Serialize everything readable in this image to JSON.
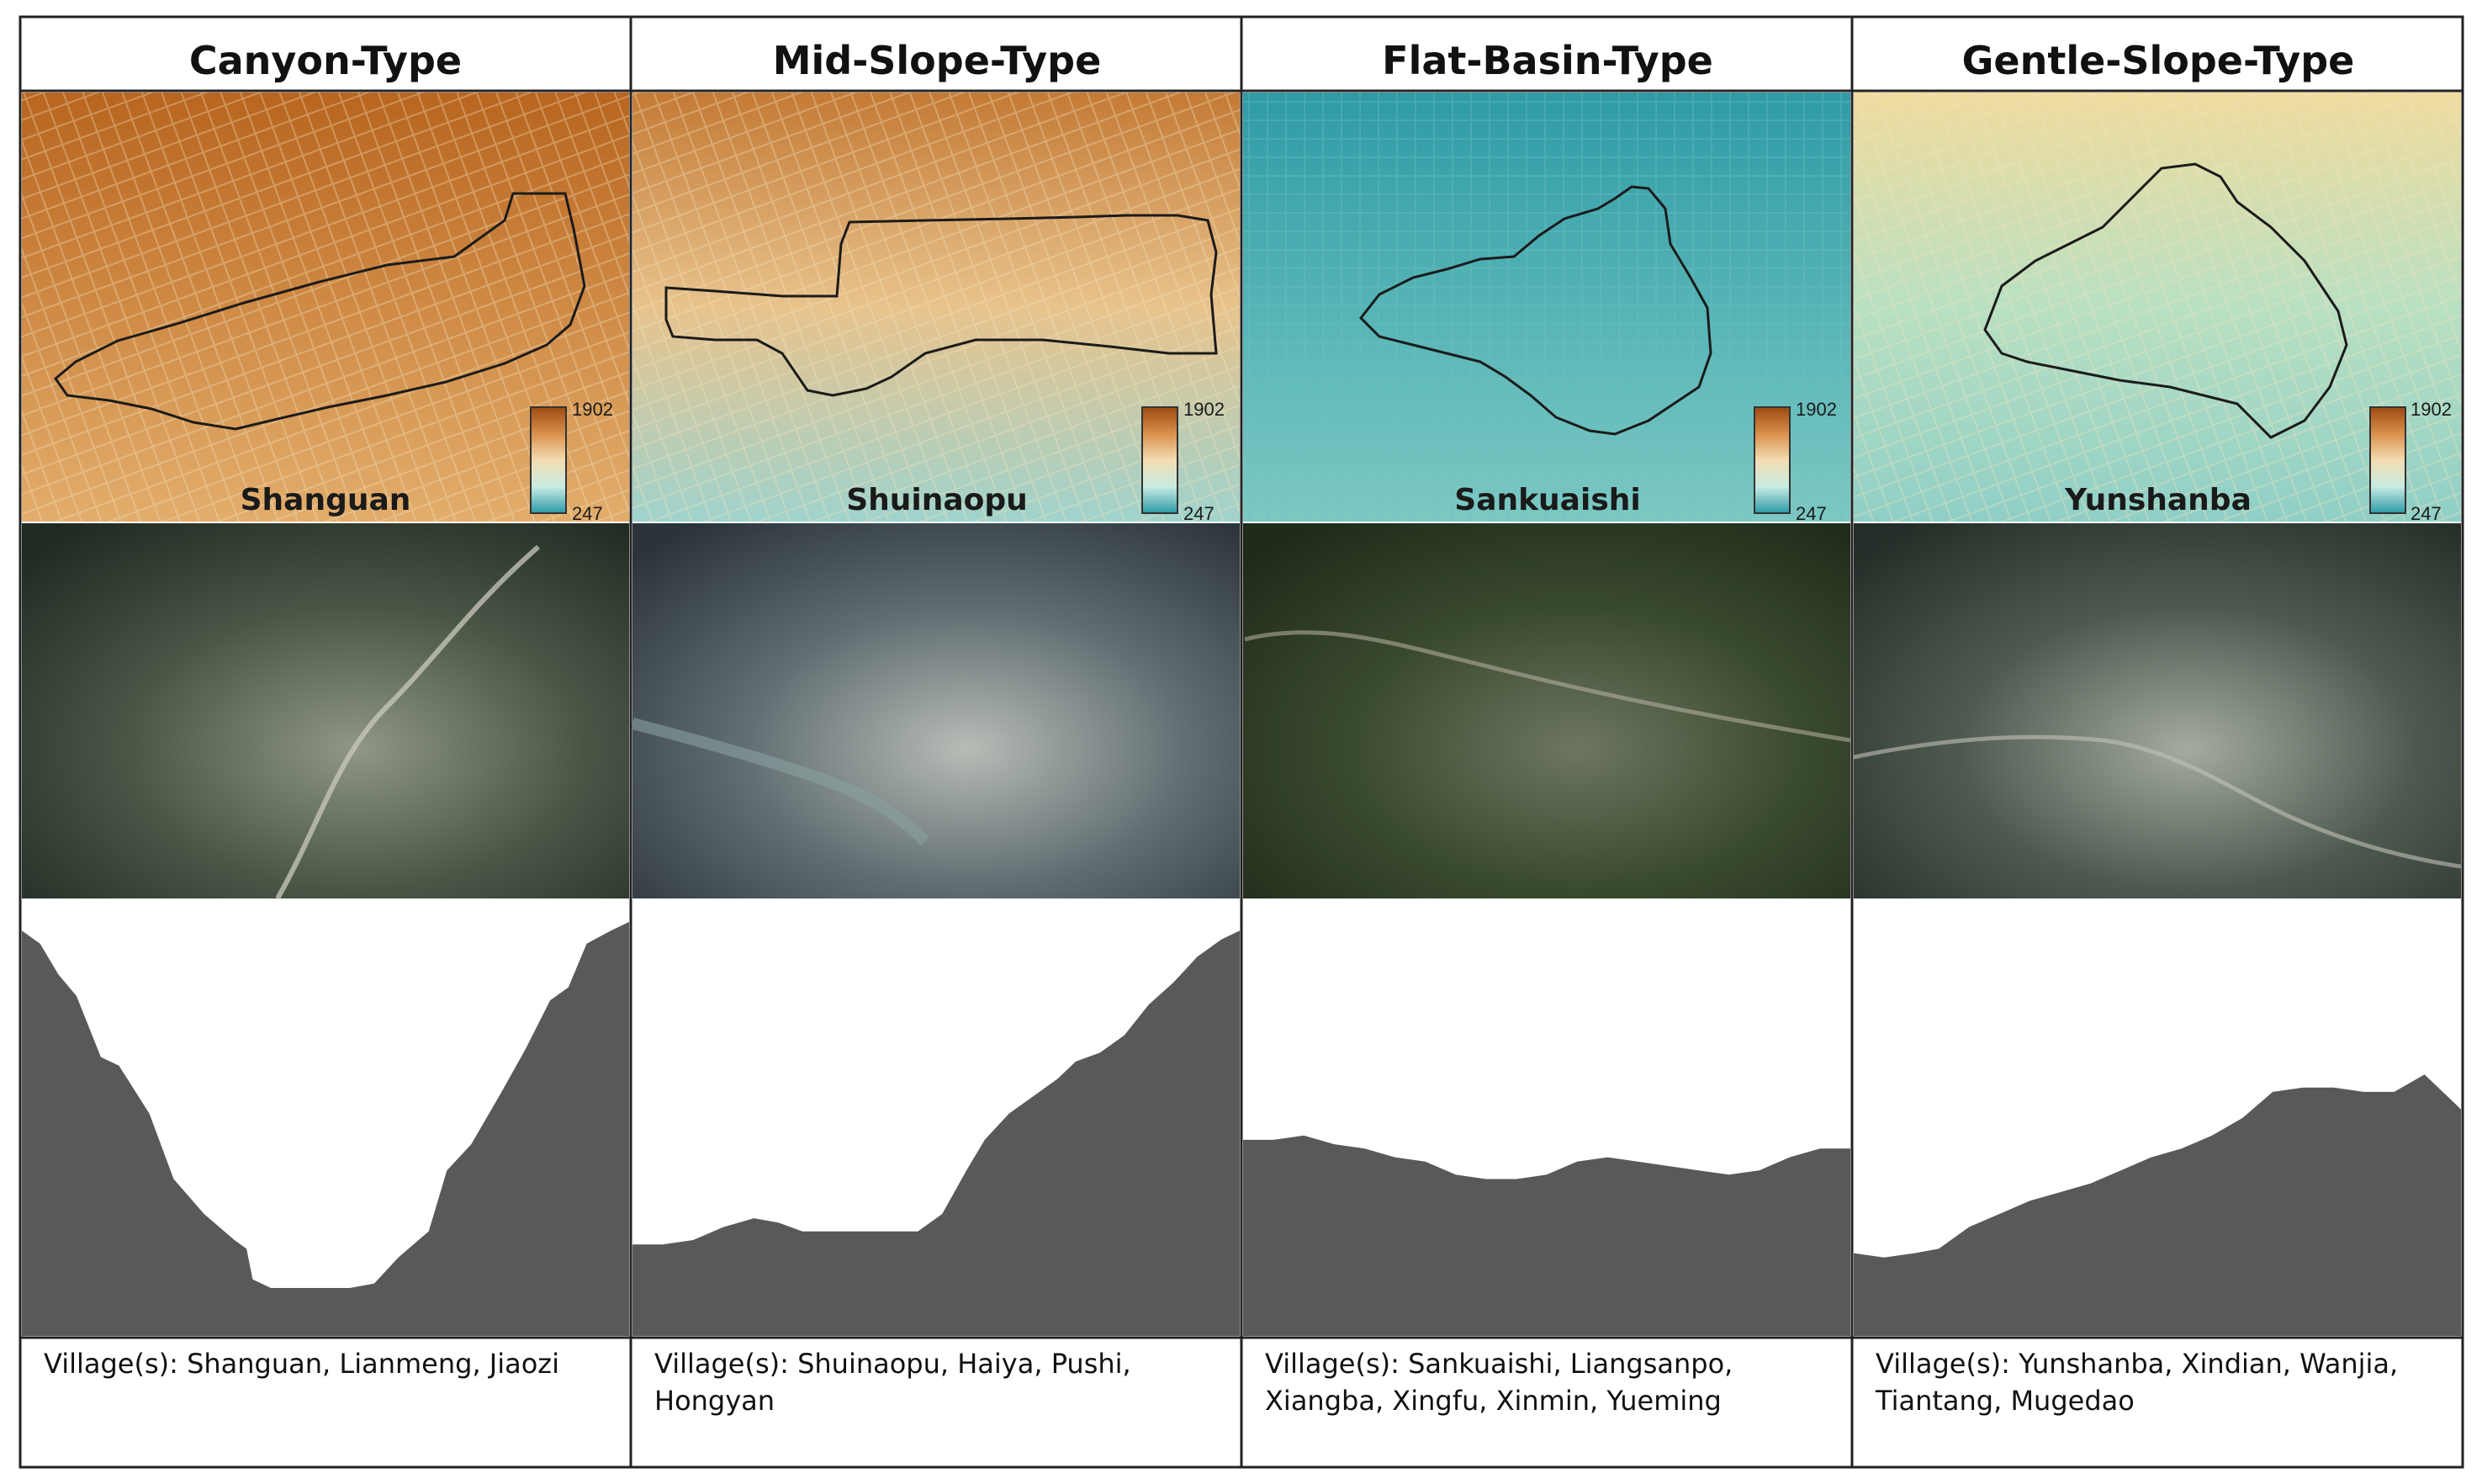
{
  "colorbar": {
    "max": "1902",
    "min": "247",
    "colors": [
      "#9b4a12",
      "#d9904c",
      "#f3ddb2",
      "#c9ebe2",
      "#2b9aa8"
    ]
  },
  "columns": [
    {
      "title": "Canyon-Type",
      "place": "Shanguan",
      "villages_line1": "Village(s): Shanguan, Lianmeng, Jiaozi",
      "villages_line2": "",
      "dem_palette": [
        "#b8651f",
        "#cf8a45",
        "#e2ad6c"
      ],
      "satellite_palette": [
        "#1f2a22",
        "#4a5646",
        "#8f9785"
      ],
      "profile": [
        [
          0,
          0.93
        ],
        [
          0.03,
          0.9
        ],
        [
          0.06,
          0.83
        ],
        [
          0.09,
          0.78
        ],
        [
          0.13,
          0.64
        ],
        [
          0.16,
          0.62
        ],
        [
          0.21,
          0.51
        ],
        [
          0.25,
          0.36
        ],
        [
          0.3,
          0.28
        ],
        [
          0.35,
          0.22
        ],
        [
          0.37,
          0.2
        ],
        [
          0.38,
          0.13
        ],
        [
          0.41,
          0.11
        ],
        [
          0.46,
          0.11
        ],
        [
          0.5,
          0.11
        ],
        [
          0.54,
          0.11
        ],
        [
          0.58,
          0.12
        ],
        [
          0.62,
          0.18
        ],
        [
          0.67,
          0.24
        ],
        [
          0.7,
          0.38
        ],
        [
          0.74,
          0.44
        ],
        [
          0.79,
          0.56
        ],
        [
          0.83,
          0.66
        ],
        [
          0.87,
          0.77
        ],
        [
          0.9,
          0.8
        ],
        [
          0.93,
          0.9
        ],
        [
          0.97,
          0.93
        ],
        [
          1.0,
          0.95
        ]
      ]
    },
    {
      "title": "Mid-Slope-Type",
      "place": "Shuinaopu",
      "villages_line1": "Village(s): Shuinaopu, Haiya, Pushi,",
      "villages_line2": "Hongyan",
      "dem_palette": [
        "#c47a35",
        "#e8c38c",
        "#9fd3cd"
      ],
      "satellite_palette": [
        "#2a333a",
        "#5f6c70",
        "#b7bcb6"
      ],
      "profile": [
        [
          0,
          0.21
        ],
        [
          0.05,
          0.21
        ],
        [
          0.1,
          0.22
        ],
        [
          0.15,
          0.25
        ],
        [
          0.2,
          0.27
        ],
        [
          0.24,
          0.26
        ],
        [
          0.28,
          0.24
        ],
        [
          0.33,
          0.24
        ],
        [
          0.38,
          0.24
        ],
        [
          0.43,
          0.24
        ],
        [
          0.47,
          0.24
        ],
        [
          0.51,
          0.28
        ],
        [
          0.55,
          0.38
        ],
        [
          0.58,
          0.45
        ],
        [
          0.62,
          0.51
        ],
        [
          0.66,
          0.55
        ],
        [
          0.7,
          0.59
        ],
        [
          0.73,
          0.63
        ],
        [
          0.77,
          0.65
        ],
        [
          0.81,
          0.69
        ],
        [
          0.85,
          0.76
        ],
        [
          0.89,
          0.81
        ],
        [
          0.93,
          0.87
        ],
        [
          0.97,
          0.91
        ],
        [
          1.0,
          0.93
        ]
      ]
    },
    {
      "title": "Flat-Basin-Type",
      "place": "Sankuaishi",
      "villages_line1": "Village(s): Sankuaishi, Liangsanpo,",
      "villages_line2": "Xiangba, Xingfu, Xinmin, Yueming",
      "dem_palette": [
        "#2f9aa6",
        "#55b4b6",
        "#7cc8c3"
      ],
      "satellite_palette": [
        "#1e2a1a",
        "#3a4a2e",
        "#6d7660"
      ],
      "profile": [
        [
          0,
          0.45
        ],
        [
          0.05,
          0.45
        ],
        [
          0.1,
          0.46
        ],
        [
          0.15,
          0.44
        ],
        [
          0.2,
          0.43
        ],
        [
          0.25,
          0.41
        ],
        [
          0.3,
          0.4
        ],
        [
          0.35,
          0.37
        ],
        [
          0.4,
          0.36
        ],
        [
          0.45,
          0.36
        ],
        [
          0.5,
          0.37
        ],
        [
          0.55,
          0.4
        ],
        [
          0.6,
          0.41
        ],
        [
          0.65,
          0.4
        ],
        [
          0.7,
          0.39
        ],
        [
          0.75,
          0.38
        ],
        [
          0.8,
          0.37
        ],
        [
          0.85,
          0.38
        ],
        [
          0.9,
          0.41
        ],
        [
          0.95,
          0.43
        ],
        [
          1.0,
          0.43
        ]
      ]
    },
    {
      "title": "Gentle-Slope-Type",
      "place": "Yunshanba",
      "villages_line1": "Village(s): Yunshanba, Xindian, Wanjia,",
      "villages_line2": "Tiantang, Mugedao",
      "dem_palette": [
        "#f0dc9e",
        "#b9e0c2",
        "#8fcfc6"
      ],
      "satellite_palette": [
        "#252d28",
        "#4e5a50",
        "#a4aba0"
      ],
      "profile": [
        [
          0,
          0.19
        ],
        [
          0.05,
          0.18
        ],
        [
          0.1,
          0.19
        ],
        [
          0.14,
          0.2
        ],
        [
          0.19,
          0.25
        ],
        [
          0.24,
          0.28
        ],
        [
          0.29,
          0.31
        ],
        [
          0.34,
          0.33
        ],
        [
          0.39,
          0.35
        ],
        [
          0.44,
          0.38
        ],
        [
          0.49,
          0.41
        ],
        [
          0.54,
          0.43
        ],
        [
          0.59,
          0.46
        ],
        [
          0.64,
          0.5
        ],
        [
          0.69,
          0.56
        ],
        [
          0.74,
          0.57
        ],
        [
          0.79,
          0.57
        ],
        [
          0.84,
          0.56
        ],
        [
          0.89,
          0.56
        ],
        [
          0.94,
          0.6
        ],
        [
          0.97,
          0.56
        ],
        [
          1.0,
          0.52
        ]
      ]
    }
  ]
}
